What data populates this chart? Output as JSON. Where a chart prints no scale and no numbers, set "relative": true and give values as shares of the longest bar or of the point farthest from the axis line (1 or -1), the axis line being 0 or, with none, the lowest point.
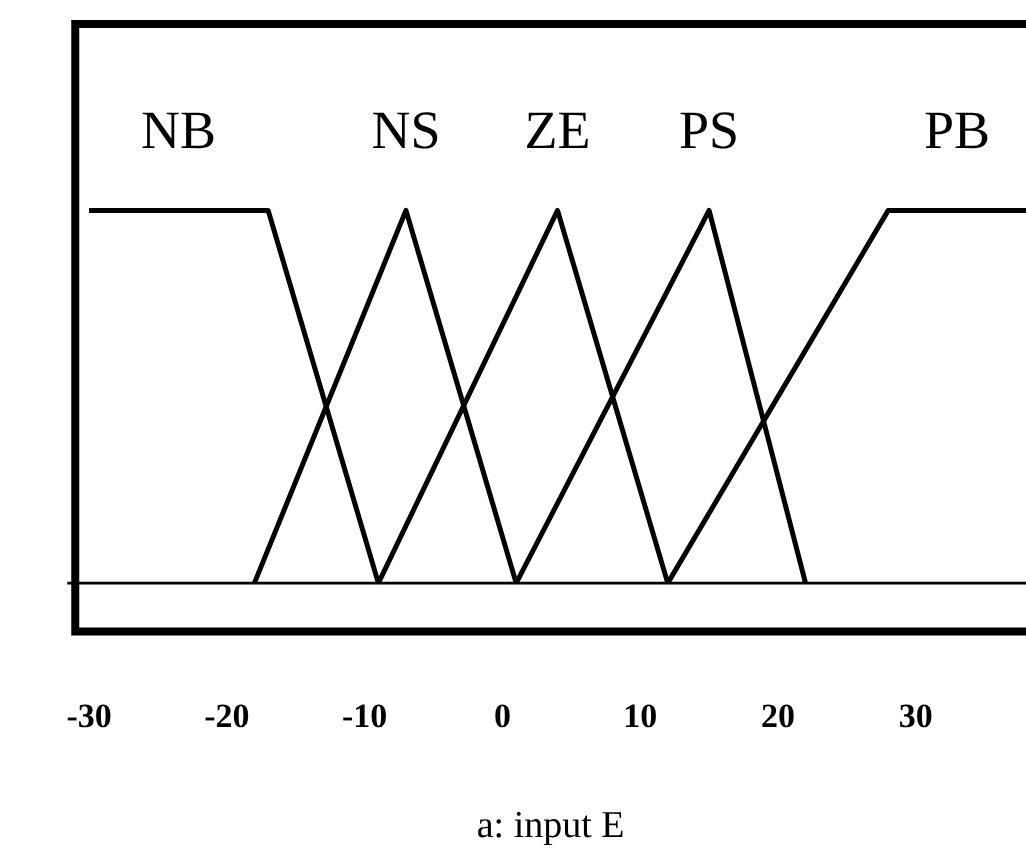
{
  "chart_data": {
    "type": "line",
    "xlabel": "a: input E",
    "relative": true,
    "xlim": [
      -31,
      38
    ],
    "xticks": [
      -30,
      -20,
      -10,
      0,
      10,
      20,
      30
    ],
    "grid": false,
    "legend": false,
    "marker": "none",
    "line_style": "solid",
    "series": [
      {
        "name": "NB",
        "color": "#000000",
        "x": [
          -30,
          -17,
          -9
        ],
        "values": [
          1,
          1,
          0
        ]
      },
      {
        "name": "NS",
        "color": "#000000",
        "x": [
          -18,
          -7,
          1
        ],
        "values": [
          0,
          1,
          0
        ]
      },
      {
        "name": "ZE",
        "color": "#000000",
        "x": [
          -9,
          4,
          12
        ],
        "values": [
          0,
          1,
          0
        ]
      },
      {
        "name": "PS",
        "color": "#000000",
        "x": [
          1,
          15,
          22
        ],
        "values": [
          0,
          1,
          0
        ]
      },
      {
        "name": "PB",
        "color": "#000000",
        "x": [
          12,
          28,
          38
        ],
        "values": [
          0,
          1,
          1
        ]
      }
    ]
  }
}
